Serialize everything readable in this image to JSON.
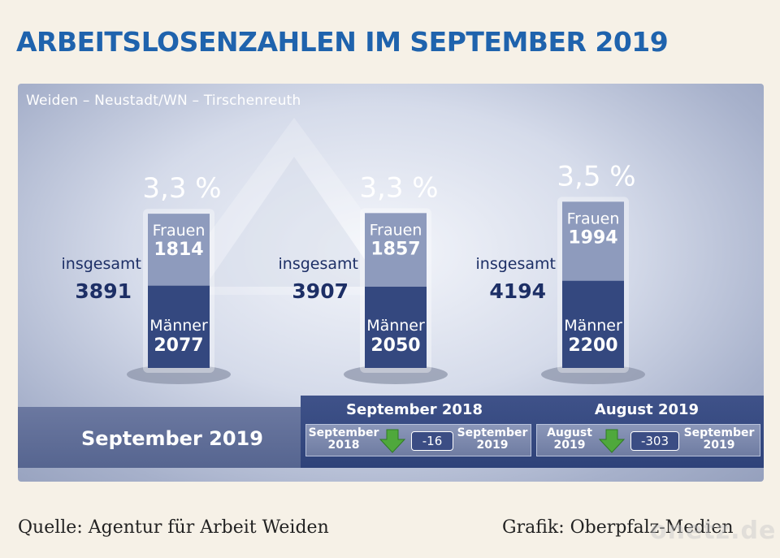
{
  "title": "ARBEITSLOSENZAHLEN IM SEPTEMBER 2019",
  "subtitle": "Weiden – Neustadt/WN – Tirschenreuth",
  "chart_data": {
    "type": "bar",
    "categories": [
      "",
      "",
      ""
    ],
    "bars": [
      {
        "rate": "3,3 %",
        "frauen": 1814,
        "maenner": 2077,
        "total": 3891
      },
      {
        "rate": "3,3 %",
        "frauen": 1857,
        "maenner": 2050,
        "total": 3907
      },
      {
        "rate": "3,5 %",
        "frauen": 1994,
        "maenner": 2200,
        "total": 4194
      }
    ],
    "series": [
      {
        "name": "Frauen",
        "values": [
          1814,
          1857,
          1994
        ]
      },
      {
        "name": "Männer",
        "values": [
          2077,
          2050,
          2200
        ]
      }
    ],
    "labels": {
      "frauen": "Frauen",
      "maenner": "Männer",
      "total": "insgesamt"
    },
    "colors": {
      "frauen": "#8e9bbd",
      "maenner": "#34487f"
    }
  },
  "bottom": {
    "period_label": "September 2019",
    "compare": [
      {
        "title": "September 2018",
        "from": "September\n2018",
        "diff": "-16",
        "to": "September\n2019"
      },
      {
        "title": "August 2019",
        "from": "August\n2019",
        "diff": "-303",
        "to": "September\n2019"
      }
    ]
  },
  "footer": {
    "source": "Quelle: Agentur für Arbeit Weiden",
    "credit": "Grafik: Oberpfalz-Medien",
    "watermark": "onetz.de"
  }
}
